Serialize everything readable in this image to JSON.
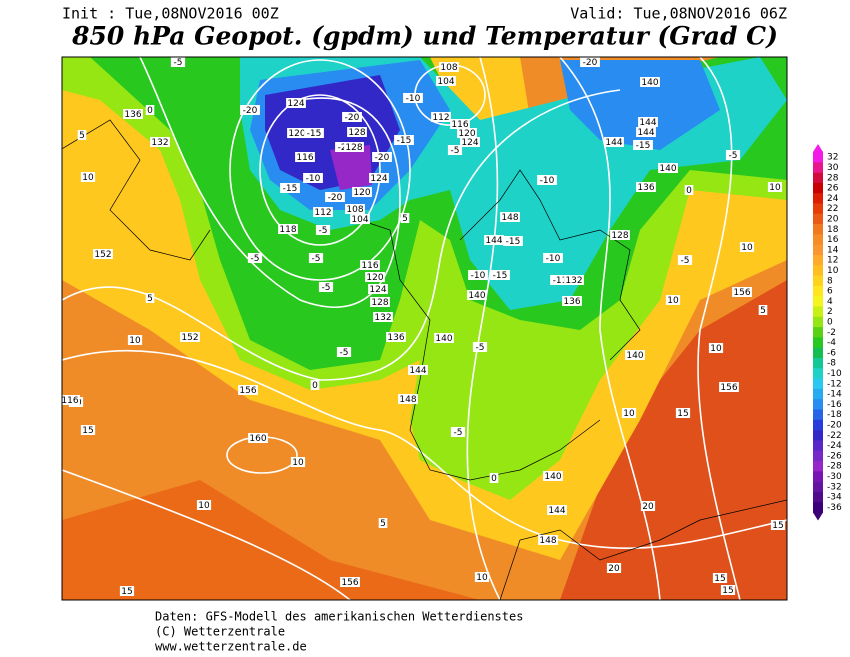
{
  "header": {
    "init": "Init : Tue,08NOV2016 00Z",
    "valid": "Valid: Tue,08NOV2016 06Z",
    "title": "850 hPa Geopot. (gpdm) und Temperatur (Grad C)"
  },
  "colorbar": {
    "levels": [
      32,
      30,
      28,
      26,
      24,
      22,
      20,
      18,
      16,
      14,
      12,
      10,
      8,
      6,
      4,
      2,
      0,
      -2,
      -4,
      -6,
      -8,
      -10,
      -12,
      -14,
      -16,
      -18,
      -20,
      -22,
      -24,
      -26,
      -28,
      -30,
      -32,
      -34,
      -36
    ],
    "colors": [
      "#f21ce6",
      "#e8158c",
      "#d20a3c",
      "#c80000",
      "#dc1e00",
      "#e63c0a",
      "#eb5a14",
      "#f0781e",
      "#f58c28",
      "#fa9632",
      "#ffaa28",
      "#ffbe1e",
      "#ffd21e",
      "#ffe61e",
      "#f5f51e",
      "#c8f014",
      "#96e614",
      "#5ad214",
      "#28c81e",
      "#14be50",
      "#14c896",
      "#1ed2c8",
      "#28c8f0",
      "#28aaf0",
      "#288cf0",
      "#2864e6",
      "#283cdc",
      "#3228c8",
      "#5a28c8",
      "#7828c8",
      "#9628c8",
      "#7814b4",
      "#6414a0",
      "#500a8c",
      "#3c0078"
    ]
  },
  "map_labels": [
    "-20",
    "124",
    "120",
    "-15",
    "128",
    "-20",
    "-25",
    "128",
    "-20",
    "116",
    "-10",
    "-15",
    "-20",
    "120",
    "124",
    "108",
    "104",
    "112",
    "118",
    "-5",
    "-5",
    "-5",
    "116",
    "120",
    "124",
    "128",
    "132",
    "136",
    "-5",
    "-5",
    "0",
    "152",
    "156",
    "152",
    "5",
    "10",
    "15",
    "10",
    "160",
    "10",
    "10",
    "5",
    "15",
    "156",
    "10",
    "148",
    "144",
    "140",
    "0",
    "-5",
    "148",
    "144",
    "140",
    "-5",
    "140",
    "-10",
    "-15",
    "144",
    "-15",
    "148",
    "-10",
    "-10",
    "-11",
    "132",
    "136",
    "128",
    "136",
    "140",
    "-5",
    "144",
    "-15",
    "144",
    "144",
    "140",
    "-20",
    "108",
    "104",
    "112",
    "116",
    "120",
    "124",
    "-5",
    "-10",
    "-15",
    "5",
    "140",
    "10",
    "10",
    "156",
    "156",
    "10",
    "15",
    "20",
    "20",
    "15",
    "15",
    "15",
    "10",
    "10",
    "5",
    "0",
    "-5",
    "116",
    "-5",
    "136",
    "0",
    "132",
    "5",
    "10"
  ],
  "footer": [
    "Daten: GFS-Modell des amerikanischen Wetterdienstes",
    "(C) Wetterzentrale",
    "www.wetterzentrale.de"
  ]
}
